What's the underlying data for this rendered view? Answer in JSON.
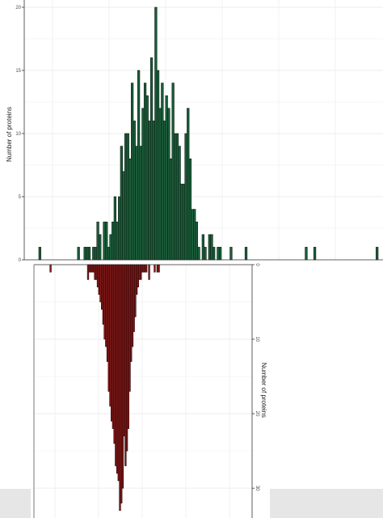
{
  "chart_data": [
    {
      "type": "bar",
      "panel": "top",
      "ylabel": "Number of proteins",
      "ylim": [
        0,
        20
      ],
      "yticks": [
        "0",
        "5",
        "10",
        "15",
        "20"
      ],
      "grid": true,
      "bar_color": "#1b5e3b",
      "values": [
        1,
        0,
        0,
        0,
        0,
        0,
        0,
        0,
        0,
        0,
        0,
        0,
        0,
        0,
        0,
        0,
        0,
        0,
        1,
        0,
        0,
        1,
        1,
        1,
        0,
        1,
        1,
        3,
        2,
        0,
        3,
        3,
        1,
        2,
        3,
        5,
        3,
        5,
        9,
        7,
        10,
        10,
        8,
        14,
        11,
        9,
        15,
        9,
        12,
        14,
        13,
        11,
        16,
        11,
        20,
        15,
        12,
        14,
        11,
        13,
        12,
        8,
        14,
        10,
        10,
        9,
        6,
        6,
        10,
        12,
        8,
        4,
        4,
        3,
        1,
        0,
        2,
        1,
        0,
        2,
        2,
        1,
        0,
        1,
        1,
        0,
        0,
        0,
        0,
        1,
        0,
        0,
        0,
        0,
        0,
        0,
        1,
        0,
        0,
        0,
        0,
        0,
        0,
        0,
        0,
        0,
        0,
        0,
        0,
        0,
        0,
        0,
        0,
        0,
        0,
        0,
        0,
        0,
        0,
        0,
        0,
        0,
        0,
        0,
        1,
        0,
        0,
        0,
        1,
        0,
        0,
        0,
        0,
        0,
        0,
        0,
        0,
        0,
        0,
        0,
        0,
        0,
        0,
        0,
        0,
        0,
        0,
        0,
        0,
        0,
        0,
        0,
        0,
        0,
        0,
        0,
        0,
        1
      ]
    },
    {
      "type": "bar",
      "panel": "bottom",
      "ylabel": "Number of proteins",
      "ylim": [
        0,
        34
      ],
      "yticks": [
        "0",
        "10",
        "20",
        "30"
      ],
      "grid": true,
      "bar_color": "#8b1a1a",
      "values": [
        0,
        0,
        0,
        0,
        0,
        0,
        0,
        0,
        1,
        0,
        0,
        0,
        0,
        0,
        0,
        0,
        0,
        0,
        0,
        0,
        0,
        0,
        0,
        0,
        0,
        0,
        0,
        0,
        0,
        0,
        0,
        0,
        0,
        0,
        0,
        2,
        1,
        1,
        1,
        1,
        2,
        2,
        3,
        4,
        5,
        6,
        8,
        10,
        11,
        13,
        17,
        19,
        21,
        22,
        24,
        27,
        28,
        29,
        33,
        32,
        30,
        23,
        27,
        25,
        22,
        17,
        13,
        11,
        9,
        7,
        4,
        3,
        2,
        2,
        1,
        1,
        1,
        1,
        0,
        2,
        0,
        0,
        0,
        1,
        0,
        1,
        1,
        0,
        0,
        0,
        0,
        0,
        0,
        0,
        0,
        0,
        0,
        0,
        0,
        0,
        0,
        0,
        0,
        0,
        0,
        0,
        0,
        0,
        0,
        0,
        0,
        0,
        0,
        0,
        0,
        0,
        0,
        0,
        0,
        0,
        0,
        0,
        0,
        0,
        0,
        0,
        0,
        0,
        0,
        0,
        0,
        0,
        0,
        0,
        0,
        0,
        0,
        0,
        0,
        0,
        0,
        0,
        0,
        0,
        0,
        0,
        0,
        0,
        0,
        0,
        0,
        0,
        0,
        0,
        0,
        0
      ]
    }
  ]
}
